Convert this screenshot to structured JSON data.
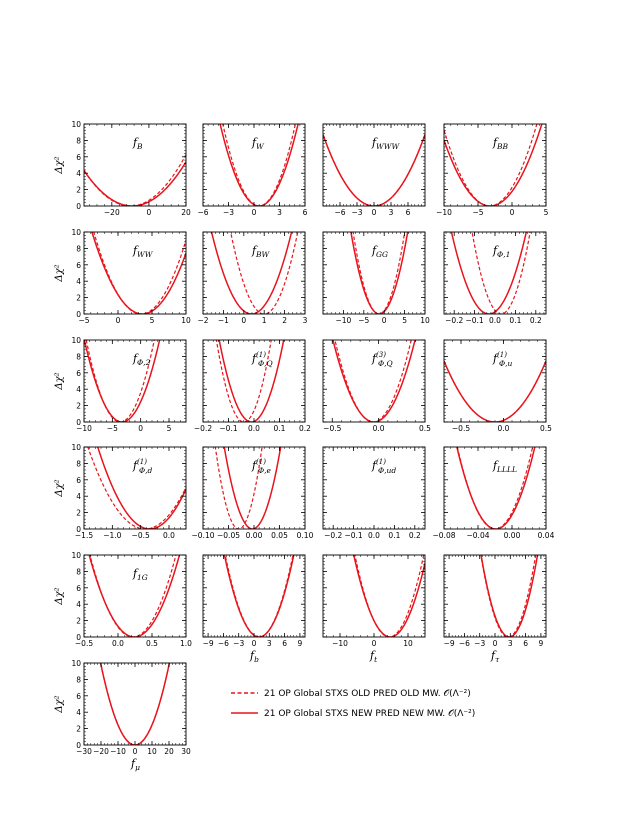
{
  "colors": {
    "curve": "#e8141c",
    "axis": "#000000"
  },
  "y_axis_label": "Δχ²",
  "legend": {
    "placement": "bottom-right",
    "entries": [
      {
        "style": "dashed",
        "label": "21 OP Global STXS OLD PRED OLD MW. 𝒪(Λ⁻²)"
      },
      {
        "style": "solid",
        "label": "21 OP Global STXS NEW PRED NEW MW. 𝒪(Λ⁻²)"
      }
    ]
  },
  "chart_data": [
    {
      "type": "line",
      "label": "f_B",
      "xlabel": "",
      "xlim": [
        -35,
        20
      ],
      "ylim": [
        0,
        10
      ],
      "yticks": [
        0,
        2,
        4,
        6,
        8,
        10
      ],
      "xticks": [
        -20,
        0,
        20
      ],
      "series": [
        {
          "style": "dashed",
          "min": -10,
          "width": 12
        },
        {
          "style": "solid",
          "min": -9,
          "width": 12.5
        }
      ]
    },
    {
      "type": "line",
      "label": "f_W",
      "xlabel": "",
      "xlim": [
        -6,
        6
      ],
      "ylim": [
        0,
        10
      ],
      "yticks": [
        0,
        2,
        4,
        6,
        8,
        10
      ],
      "xticks": [
        -6,
        -3,
        0,
        3,
        6
      ],
      "series": [
        {
          "style": "dashed",
          "min": 0.6,
          "width": 1.35
        },
        {
          "style": "solid",
          "min": 0.6,
          "width": 1.45
        }
      ]
    },
    {
      "type": "line",
      "label": "f_WWW",
      "xlabel": "",
      "xlim": [
        -9,
        9
      ],
      "ylim": [
        0,
        10
      ],
      "yticks": [
        0,
        2,
        4,
        6,
        8,
        10
      ],
      "xticks": [
        -6,
        -3,
        0,
        3,
        6
      ],
      "series": [
        {
          "style": "dashed",
          "min": 0,
          "width": 3.05
        },
        {
          "style": "solid",
          "min": 0,
          "width": 3.05
        }
      ]
    },
    {
      "type": "line",
      "label": "f_BB",
      "xlabel": "",
      "xlim": [
        -10,
        5
      ],
      "ylim": [
        0,
        10
      ],
      "yticks": [
        0,
        2,
        4,
        6,
        8,
        10
      ],
      "xticks": [
        -10,
        -5,
        0,
        5
      ],
      "series": [
        {
          "style": "dashed",
          "min": -3.3,
          "width": 2.2
        },
        {
          "style": "solid",
          "min": -3.2,
          "width": 2.4
        }
      ]
    },
    {
      "type": "line",
      "label": "f_WW",
      "xlabel": "",
      "xlim": [
        -5,
        10
      ],
      "ylim": [
        0,
        10
      ],
      "yticks": [
        0,
        2,
        4,
        6,
        8,
        10
      ],
      "xticks": [
        -5,
        0,
        5,
        10
      ],
      "series": [
        {
          "style": "dashed",
          "min": 3.4,
          "width": 2.2
        },
        {
          "style": "solid",
          "min": 3.6,
          "width": 2.35
        }
      ]
    },
    {
      "type": "line",
      "label": "f_BW",
      "xlabel": "",
      "xlim": [
        -2,
        3
      ],
      "ylim": [
        0,
        10
      ],
      "yticks": [
        0,
        2,
        4,
        6,
        8,
        10
      ],
      "xticks": [
        -2,
        -1,
        0,
        1,
        2,
        3
      ],
      "series": [
        {
          "style": "dashed",
          "min": 1.0,
          "width": 0.52
        },
        {
          "style": "solid",
          "min": 0.38,
          "width": 0.62
        }
      ]
    },
    {
      "type": "line",
      "label": "f_GG",
      "xlabel": "",
      "xlim": [
        -15,
        10
      ],
      "ylim": [
        0,
        10
      ],
      "yticks": [
        0,
        2,
        4,
        6,
        8,
        10
      ],
      "xticks": [
        -10,
        -5,
        0,
        5,
        10
      ],
      "series": [
        {
          "style": "dashed",
          "min": -1.3,
          "width": 2.0
        },
        {
          "style": "solid",
          "min": -1.2,
          "width": 2.2
        }
      ]
    },
    {
      "type": "line",
      "label": "f_Φ,1",
      "xlabel": "",
      "xlim": [
        -0.25,
        0.25
      ],
      "ylim": [
        0,
        10
      ],
      "yticks": [
        0,
        2,
        4,
        6,
        8,
        10
      ],
      "xticks": [
        -0.2,
        -0.1,
        0.0,
        0.1,
        0.2
      ],
      "series": [
        {
          "style": "dashed",
          "min": 0.03,
          "width": 0.045
        },
        {
          "style": "solid",
          "min": -0.03,
          "width": 0.058
        }
      ]
    },
    {
      "type": "line",
      "label": "f_Φ,2",
      "xlabel": "",
      "xlim": [
        -10,
        8
      ],
      "ylim": [
        0,
        10
      ],
      "yticks": [
        0,
        2,
        4,
        6,
        8,
        10
      ],
      "xticks": [
        -10,
        -5,
        0,
        5
      ],
      "series": [
        {
          "style": "dashed",
          "min": -3.6,
          "width": 1.9
        },
        {
          "style": "solid",
          "min": -3.3,
          "width": 2.1
        }
      ]
    },
    {
      "type": "line",
      "label": "f_Φ,Q⁽¹⁾",
      "xlabel": "",
      "xlim": [
        -0.2,
        0.2
      ],
      "ylim": [
        0,
        10
      ],
      "yticks": [
        0,
        2,
        4,
        6,
        8,
        10
      ],
      "xticks": [
        -0.2,
        -0.1,
        0.0,
        0.1,
        0.2
      ],
      "series": [
        {
          "style": "dashed",
          "min": -0.04,
          "width": 0.034
        },
        {
          "style": "solid",
          "min": -0.01,
          "width": 0.04
        }
      ]
    },
    {
      "type": "line",
      "label": "f_Φ,Q⁽³⁾",
      "xlabel": "",
      "xlim": [
        -0.6,
        0.5
      ],
      "ylim": [
        0,
        10
      ],
      "yticks": [
        0,
        2,
        4,
        6,
        8,
        10
      ],
      "xticks": [
        -0.5,
        0.0,
        0.5
      ],
      "series": [
        {
          "style": "dashed",
          "min": -0.06,
          "width": 0.13
        },
        {
          "style": "solid",
          "min": -0.05,
          "width": 0.14
        }
      ]
    },
    {
      "type": "line",
      "label": "f_Φ,u⁽¹⁾",
      "xlabel": "",
      "xlim": [
        -0.7,
        0.5
      ],
      "ylim": [
        0,
        10
      ],
      "yticks": [
        0,
        2,
        4,
        6,
        8,
        10
      ],
      "xticks": [
        -0.5,
        0.0,
        0.5
      ],
      "series": [
        {
          "style": "dashed",
          "min": -0.1,
          "width": 0.22
        },
        {
          "style": "solid",
          "min": -0.1,
          "width": 0.22
        }
      ]
    },
    {
      "type": "line",
      "label": "f_Φ,d⁽¹⁾",
      "xlabel": "",
      "xlim": [
        -1.5,
        0.3
      ],
      "ylim": [
        0,
        10
      ],
      "yticks": [
        0,
        2,
        4,
        6,
        8,
        10
      ],
      "xticks": [
        -1.5,
        -1.0,
        -0.5,
        0.0
      ],
      "series": [
        {
          "style": "dashed",
          "min": -0.42,
          "width": 0.32
        },
        {
          "style": "solid",
          "min": -0.34,
          "width": 0.29
        }
      ]
    },
    {
      "type": "line",
      "label": "f_Φ,e⁽¹⁾",
      "xlabel": "",
      "xlim": [
        -0.1,
        0.1
      ],
      "ylim": [
        0,
        10
      ],
      "yticks": [
        0,
        2,
        4,
        6,
        8,
        10
      ],
      "xticks": [
        -0.1,
        -0.05,
        0.0,
        0.05,
        0.1
      ],
      "series": [
        {
          "style": "dashed",
          "min": -0.03,
          "width": 0.0145
        },
        {
          "style": "solid",
          "min": -0.003,
          "width": 0.0175
        }
      ]
    },
    {
      "type": "line",
      "label": "f_Φ,ud⁽¹⁾",
      "xlabel": "",
      "xlim": [
        -0.25,
        0.25
      ],
      "ylim": [
        0,
        10
      ],
      "yticks": [
        0,
        2,
        4,
        6,
        8,
        10
      ],
      "xticks": [
        -0.2,
        -0.1,
        0.0,
        0.1,
        0.2
      ],
      "series": []
    },
    {
      "type": "line",
      "label": "f_LLLL",
      "xlabel": "",
      "xlim": [
        -0.08,
        0.04
      ],
      "ylim": [
        0,
        10
      ],
      "yticks": [
        0,
        2,
        4,
        6,
        8,
        10
      ],
      "xticks": [
        -0.08,
        -0.04,
        0.0,
        0.04
      ],
      "series": [
        {
          "style": "dashed",
          "min": -0.02,
          "width": 0.014
        },
        {
          "style": "solid",
          "min": -0.019,
          "width": 0.0145
        }
      ]
    },
    {
      "type": "line",
      "label": "f_1G",
      "xlabel": "",
      "xlim": [
        -0.5,
        1.0
      ],
      "ylim": [
        0,
        10
      ],
      "yticks": [
        0,
        2,
        4,
        6,
        8,
        10
      ],
      "xticks": [
        -0.5,
        0.0,
        0.5,
        1.0
      ],
      "series": [
        {
          "style": "dashed",
          "min": 0.22,
          "width": 0.2
        },
        {
          "style": "solid",
          "min": 0.24,
          "width": 0.21
        }
      ]
    },
    {
      "type": "line",
      "label": "",
      "xlabel": "f_b",
      "xlim": [
        -10,
        10
      ],
      "ylim": [
        0,
        10
      ],
      "yticks": [
        0,
        2,
        4,
        6,
        8,
        10
      ],
      "xticks": [
        -9,
        -6,
        -3,
        0,
        3,
        6,
        9
      ],
      "series": [
        {
          "style": "dashed",
          "min": 1.0,
          "width": 2.1
        },
        {
          "style": "solid",
          "min": 1.0,
          "width": 2.15
        }
      ]
    },
    {
      "type": "line",
      "label": "",
      "xlabel": "f_t",
      "xlim": [
        -15,
        15
      ],
      "ylim": [
        0,
        10
      ],
      "yticks": [
        0,
        2,
        4,
        6,
        8,
        10
      ],
      "xticks": [
        -10,
        0,
        10
      ],
      "series": [
        {
          "style": "dashed",
          "min": 4.5,
          "width": 3.2
        },
        {
          "style": "solid",
          "min": 4.8,
          "width": 3.4
        }
      ]
    },
    {
      "type": "line",
      "label": "",
      "xlabel": "f_τ",
      "xlim": [
        -10,
        10
      ],
      "ylim": [
        0,
        10
      ],
      "yticks": [
        0,
        2,
        4,
        6,
        8,
        10
      ],
      "xticks": [
        -9,
        -6,
        -3,
        0,
        3,
        6,
        9
      ],
      "series": [
        {
          "style": "dashed",
          "min": 2.6,
          "width": 1.7
        },
        {
          "style": "solid",
          "min": 2.8,
          "width": 1.75
        }
      ]
    },
    {
      "type": "line",
      "label": "",
      "xlabel": "f_μ",
      "xlim": [
        -30,
        30
      ],
      "ylim": [
        0,
        10
      ],
      "yticks": [
        0,
        2,
        4,
        6,
        8,
        10
      ],
      "xticks": [
        -30,
        -20,
        -10,
        0,
        10,
        20,
        30
      ],
      "series": [
        {
          "style": "dashed",
          "min": 0,
          "width": 6.4
        },
        {
          "style": "solid",
          "min": 0,
          "width": 6.4
        }
      ]
    }
  ]
}
